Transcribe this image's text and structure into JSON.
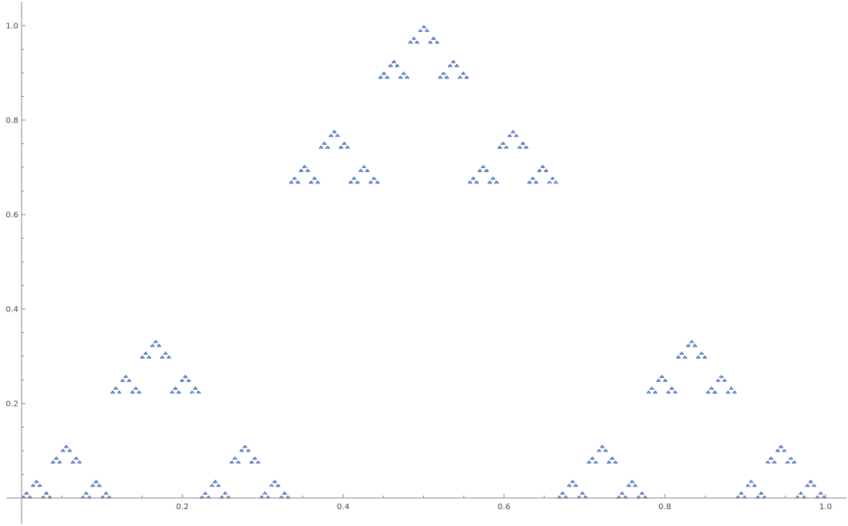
{
  "chart_data": {
    "type": "scatter",
    "title": "",
    "xlabel": "",
    "ylabel": "",
    "xlim": [
      0,
      1.0
    ],
    "ylim": [
      0,
      1.0
    ],
    "grid": false,
    "legend": "none",
    "x_ticks": [
      {
        "value": 0.2,
        "label": "0.2"
      },
      {
        "value": 0.4,
        "label": "0.4"
      },
      {
        "value": 0.6,
        "label": "0.6"
      },
      {
        "value": 0.8,
        "label": "0.8"
      },
      {
        "value": 1.0,
        "label": "1.0"
      }
    ],
    "y_ticks": [
      {
        "value": 0.2,
        "label": "0.2"
      },
      {
        "value": 0.4,
        "label": "0.4"
      },
      {
        "value": 0.6,
        "label": "0.6"
      },
      {
        "value": 0.8,
        "label": "0.8"
      },
      {
        "value": 1.0,
        "label": "1.0"
      }
    ],
    "series": [
      {
        "description_of_pattern": "",
        "color": "#5b7fbf",
        "pattern": "sierpinski-dust",
        "outer_vertices": [
          [
            0,
            0
          ],
          [
            1,
            0
          ],
          [
            0.5,
            1
          ]
        ],
        "scale_ratio": 0.333333,
        "cluster_depth": 6
      }
    ]
  }
}
